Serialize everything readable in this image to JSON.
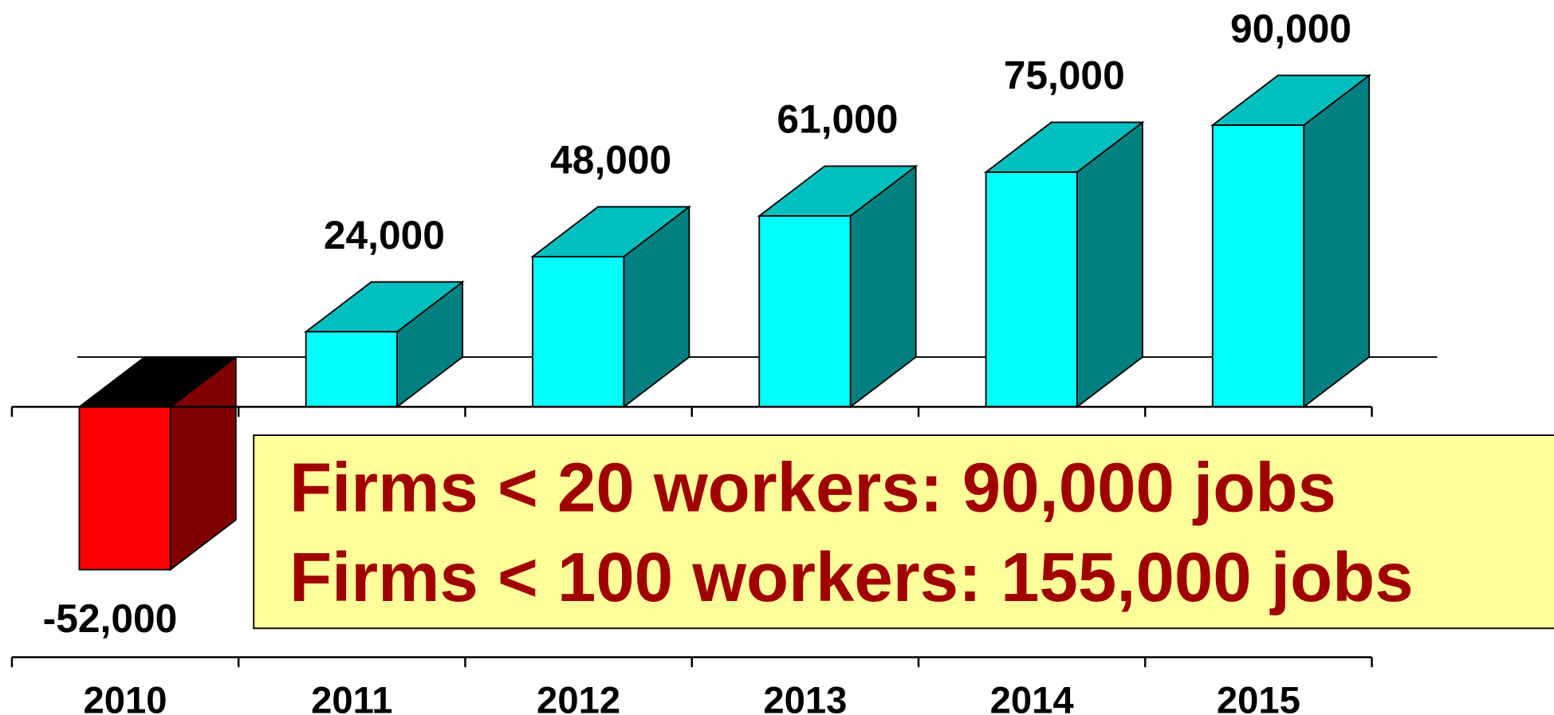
{
  "chart_data": {
    "type": "bar3d",
    "categories": [
      "2010",
      "2011",
      "2012",
      "2013",
      "2014",
      "2015"
    ],
    "values": [
      -52000,
      24000,
      48000,
      61000,
      75000,
      90000
    ],
    "value_labels": [
      "-52,000",
      "24,000",
      "48,000",
      "61,000",
      "75,000",
      "90,000"
    ],
    "colors": [
      "#ff0000",
      "#00ffff",
      "#00ffff",
      "#00ffff",
      "#00ffff",
      "#00ffff"
    ],
    "ylim": [
      -80000,
      130000
    ],
    "annotations": [
      "Firms < 20 workers: 90,000 jobs",
      "Firms < 100 workers: 155,000 jobs"
    ]
  }
}
